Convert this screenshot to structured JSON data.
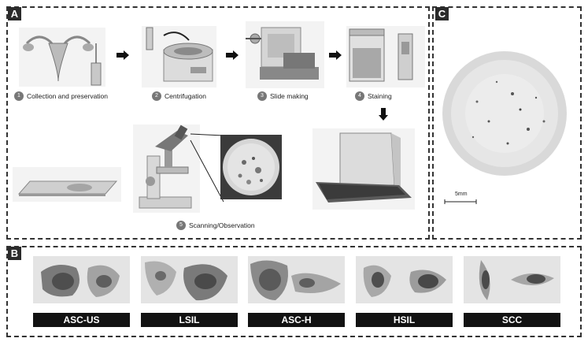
{
  "panels": {
    "a_label": "A",
    "b_label": "B",
    "c_label": "C"
  },
  "steps": [
    {
      "num": "1",
      "label": "Collection and preservation"
    },
    {
      "num": "2",
      "label": "Centrifugation"
    },
    {
      "num": "3",
      "label": "Slide making"
    },
    {
      "num": "4",
      "label": "Staining"
    },
    {
      "num": "5",
      "label": "Scanning/Observation"
    }
  ],
  "scale_label": "5mm",
  "categories": [
    {
      "label": "ASC-US"
    },
    {
      "label": "LSIL"
    },
    {
      "label": "ASC-H"
    },
    {
      "label": "HSIL"
    },
    {
      "label": "SCC"
    }
  ],
  "colors": {
    "border": "#333333",
    "label_bg": "#121212",
    "cell_bg": "#e4e4e4",
    "nucleus": "#5c5c5c",
    "cytoplasm": "#9a9a9a"
  }
}
